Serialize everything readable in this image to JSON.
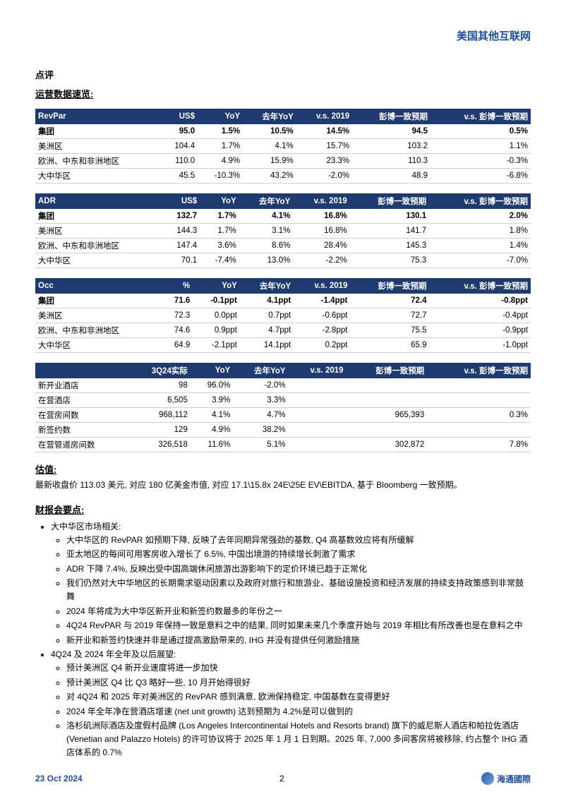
{
  "header": {
    "category": "美国其他互联网"
  },
  "commentary": {
    "title": "点评",
    "subtitle": "运营数据速览:"
  },
  "colors": {
    "table_header_bg": "#1f3a6e",
    "table_header_fg": "#ffffff",
    "row_border": "#d0d0d0",
    "accent": "#1f4e9c",
    "bg": "#ffffff",
    "text": "#000000"
  },
  "tables": [
    {
      "headers": [
        "RevPar",
        "US$",
        "YoY",
        "去年YoY",
        "v.s. 2019",
        "彭博一致预期",
        "v.s. 彭博一致预期"
      ],
      "rows": [
        {
          "bold": true,
          "cells": [
            "集团",
            "95.0",
            "1.5%",
            "10.5%",
            "14.5%",
            "94.5",
            "0.5%"
          ]
        },
        {
          "bold": false,
          "cells": [
            "美洲区",
            "104.4",
            "1.7%",
            "4.1%",
            "15.7%",
            "103.2",
            "1.1%"
          ]
        },
        {
          "bold": false,
          "cells": [
            "欧洲、中东和非洲地区",
            "110.0",
            "4.9%",
            "15.9%",
            "23.3%",
            "110.3",
            "-0.3%"
          ]
        },
        {
          "bold": false,
          "cells": [
            "大中华区",
            "45.5",
            "-10.3%",
            "43.2%",
            "-2.0%",
            "48.9",
            "-6.8%"
          ]
        }
      ]
    },
    {
      "headers": [
        "ADR",
        "US$",
        "YoY",
        "去年YoY",
        "v.s. 2019",
        "彭博一致预期",
        "v.s. 彭博一致预期"
      ],
      "rows": [
        {
          "bold": true,
          "cells": [
            "集团",
            "132.7",
            "1.7%",
            "4.1%",
            "16.8%",
            "130.1",
            "2.0%"
          ]
        },
        {
          "bold": false,
          "cells": [
            "美洲区",
            "144.3",
            "1.7%",
            "3.1%",
            "16.8%",
            "141.7",
            "1.8%"
          ]
        },
        {
          "bold": false,
          "cells": [
            "欧洲、中东和非洲地区",
            "147.4",
            "3.6%",
            "8.6%",
            "28.4%",
            "145.3",
            "1.4%"
          ]
        },
        {
          "bold": false,
          "cells": [
            "大中华区",
            "70.1",
            "-7.4%",
            "13.0%",
            "-2.2%",
            "75.3",
            "-7.0%"
          ]
        }
      ]
    },
    {
      "headers": [
        "Occ",
        "%",
        "YoY",
        "去年YoY",
        "v.s. 2019",
        "彭博一致预期",
        "v.s. 彭博一致预期"
      ],
      "rows": [
        {
          "bold": true,
          "cells": [
            "集团",
            "71.6",
            "-0.1ppt",
            "4.1ppt",
            "-1.4ppt",
            "72.4",
            "-0.8ppt"
          ]
        },
        {
          "bold": false,
          "cells": [
            "美洲区",
            "72.3",
            "0.0ppt",
            "0.7ppt",
            "-0.6ppt",
            "72.7",
            "-0.4ppt"
          ]
        },
        {
          "bold": false,
          "cells": [
            "欧洲、中东和非洲地区",
            "74.6",
            "0.9ppt",
            "4.7ppt",
            "-2.8ppt",
            "75.5",
            "-0.9ppt"
          ]
        },
        {
          "bold": false,
          "cells": [
            "大中华区",
            "64.9",
            "-2.1ppt",
            "14.1ppt",
            "0.2ppt",
            "65.9",
            "-1.0ppt"
          ]
        }
      ]
    },
    {
      "headers": [
        "",
        "3Q24实际",
        "YoY",
        "去年YoY",
        "v.s. 2019",
        "彭博一致预期",
        "v.s. 彭博一致预期"
      ],
      "rows": [
        {
          "bold": false,
          "cells": [
            "新开业酒店",
            "98",
            "96.0%",
            "-2.0%",
            "",
            "",
            ""
          ]
        },
        {
          "bold": false,
          "cells": [
            "在营酒店",
            "6,505",
            "3.9%",
            "3.3%",
            "",
            "",
            ""
          ]
        },
        {
          "bold": false,
          "cells": [
            "在营房间数",
            "968,112",
            "4.1%",
            "4.7%",
            "",
            "965,393",
            "0.3%"
          ]
        },
        {
          "bold": false,
          "cells": [
            "新签约数",
            "129",
            "4.9%",
            "38.2%",
            "",
            "",
            ""
          ]
        },
        {
          "bold": false,
          "cells": [
            "在营管道房间数",
            "326,518",
            "11.6%",
            "5.1%",
            "",
            "302,872",
            "7.8%"
          ]
        }
      ]
    }
  ],
  "valuation": {
    "title": "估值:",
    "text": "最新收盘价 113.03 美元, 对应 180 亿美金市值, 对应 17.1\\15.8x 24E\\25E EV\\EBITDA, 基于 Bloomberg 一致预期。"
  },
  "highlights": {
    "title": "财报会要点:",
    "items": [
      {
        "text": "大中华区市场相关:",
        "sub": [
          "大中华区的 RevPAR 如预期下降, 反映了去年同期异常强劲的基数, Q4 高基数效应将有所缓解",
          "亚太地区的每间可用客房收入增长了 6.5%, 中国出境游的持续增长刺激了需求",
          "ADR 下降 7.4%, 反映出受中国高端休闲旅游出游影响下的定价环境已趋于正常化",
          "我们仍然对大中华地区的长期需求驱动因素以及政府对旅行和旅游业、基础设施投资和经济发展的持续支持政策感到非常鼓舞",
          "2024 年将成为大中华区新开业和新签约数最多的年份之一",
          "4Q24 RevPAR 与 2019 年保持一致是意料之中的结果, 同时如果未来几个季度开始与 2019 年相比有所改善也是在意料之中",
          "新开业和新签约快速并非是通过提高激励带来的, IHG 并没有提供任何激励措施"
        ]
      },
      {
        "text": "4Q24 及 2024 年全年及以后展望:",
        "sub": [
          "预计美洲区 Q4 新开业速度将进一步加快",
          "预计美洲区 Q4 比 Q3 略好一些, 10 月开始得很好",
          "对 4Q24 和 2025 年对美洲区的 RevPAR 感到满意, 欧洲保持稳定, 中国基数在变得更好",
          "2024 年全年净在营酒店增速 (net unit growth) 达到预期为 4.2%是可以做到的",
          "洛杉矶洲际酒店及度假村品牌 (Los Angeles Intercontinental Hotels and Resorts brand) 旗下的威尼斯人酒店和帕拉佐酒店 (Venetian and Palazzo Hotels) 的许可协议将于 2025 年 1 月 1 日到期。2025 年, 7,000 多间客房将被移除, 约占整个 IHG 酒店体系的 0.7%"
        ]
      }
    ]
  },
  "footer": {
    "date": "23 Oct 2024",
    "page": "2",
    "brand": "海通國際"
  }
}
